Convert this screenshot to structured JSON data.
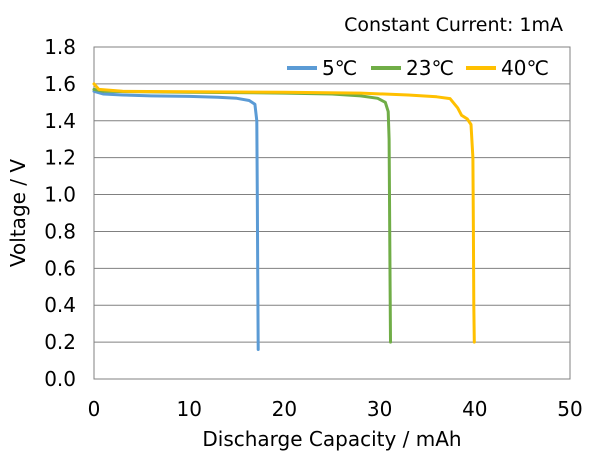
{
  "chart_data": {
    "type": "line",
    "title": "",
    "annotation": "Constant Current: 1mA",
    "xlabel": "Discharge Capacity / mAh",
    "ylabel": "Voltage / V",
    "xlim": [
      0,
      50
    ],
    "ylim": [
      0.0,
      1.8
    ],
    "xticks": [
      "0",
      "10",
      "20",
      "30",
      "40",
      "50"
    ],
    "yticks": [
      "0.0",
      "0.2",
      "0.4",
      "0.6",
      "0.8",
      "1.0",
      "1.2",
      "1.4",
      "1.6",
      "1.8"
    ],
    "grid": "horizontal",
    "legend_position": "top-right",
    "series": [
      {
        "name": "5℃",
        "color": "#5b9bd5",
        "points": [
          [
            0,
            1.56
          ],
          [
            1,
            1.545
          ],
          [
            3,
            1.54
          ],
          [
            6,
            1.535
          ],
          [
            10,
            1.532
          ],
          [
            13,
            1.528
          ],
          [
            15,
            1.522
          ],
          [
            16.3,
            1.51
          ],
          [
            16.9,
            1.49
          ],
          [
            17.1,
            1.4
          ],
          [
            17.15,
            1.0
          ],
          [
            17.2,
            0.6
          ],
          [
            17.25,
            0.16
          ]
        ]
      },
      {
        "name": "23℃",
        "color": "#70ad47",
        "points": [
          [
            0,
            1.57
          ],
          [
            1,
            1.56
          ],
          [
            5,
            1.557
          ],
          [
            10,
            1.555
          ],
          [
            15,
            1.553
          ],
          [
            20,
            1.55
          ],
          [
            25,
            1.545
          ],
          [
            28,
            1.535
          ],
          [
            29.8,
            1.522
          ],
          [
            30.6,
            1.5
          ],
          [
            30.9,
            1.45
          ],
          [
            31.0,
            1.3
          ],
          [
            31.05,
            0.9
          ],
          [
            31.1,
            0.5
          ],
          [
            31.15,
            0.2
          ]
        ]
      },
      {
        "name": "40℃",
        "color": "#ffc000",
        "points": [
          [
            0,
            1.6
          ],
          [
            0.5,
            1.57
          ],
          [
            3,
            1.56
          ],
          [
            10,
            1.557
          ],
          [
            20,
            1.555
          ],
          [
            28,
            1.55
          ],
          [
            33,
            1.54
          ],
          [
            36,
            1.53
          ],
          [
            37.4,
            1.52
          ],
          [
            38.2,
            1.47
          ],
          [
            38.6,
            1.43
          ],
          [
            39.2,
            1.41
          ],
          [
            39.6,
            1.38
          ],
          [
            39.8,
            1.2
          ],
          [
            39.85,
            0.8
          ],
          [
            39.9,
            0.4
          ],
          [
            39.95,
            0.2
          ]
        ]
      }
    ]
  }
}
